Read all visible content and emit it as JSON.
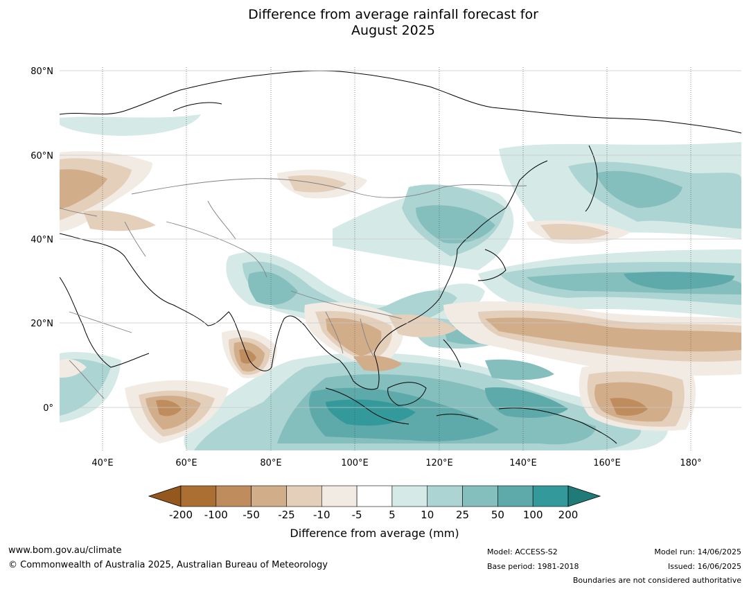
{
  "title": {
    "line1": "Difference from average rainfall forecast for",
    "line2": "August 2025"
  },
  "map": {
    "lat_labels": [
      "80°N",
      "60°N",
      "40°N",
      "20°N",
      "0°"
    ],
    "lon_labels": [
      "40°E",
      "60°E",
      "80°E",
      "100°E",
      "120°E",
      "140°E",
      "160°E",
      "180°"
    ]
  },
  "colorbar": {
    "tick_labels": [
      "-200",
      "-100",
      "-50",
      "-25",
      "-10",
      "-5",
      "5",
      "10",
      "25",
      "50",
      "100",
      "200"
    ],
    "colors": [
      "#ab6f34",
      "#bf8c5d",
      "#d2ad8a",
      "#e4cfbb",
      "#f1ebe4",
      "#ffffff",
      "#d5e9e7",
      "#acd4d3",
      "#84bfbe",
      "#5eaaaa",
      "#33999a"
    ],
    "under_color": "#94571e",
    "over_color": "#207b78",
    "label": "Difference from average (mm)"
  },
  "footer": {
    "url": "www.bom.gov.au/climate",
    "copyright": "© Commonwealth of Australia 2025, Australian Bureau of Meteorology",
    "model": "Model: ACCESS-S2",
    "base_period": "Base period: 1981-2018",
    "model_run": "Model run: 14/06/2025",
    "issued": "Issued: 16/06/2025",
    "disclaimer": "Boundaries are not considered authoritative"
  }
}
